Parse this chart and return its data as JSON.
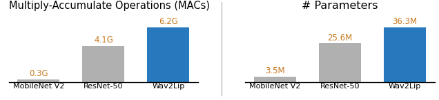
{
  "chart1_title": "Multiply-Accumulate Operations (MACs)",
  "chart1_categories": [
    "MobileNet V2",
    "ResNet-50",
    "Wav2Lip"
  ],
  "chart1_values": [
    0.3,
    4.1,
    6.2
  ],
  "chart1_labels": [
    "0.3G",
    "4.1G",
    "6.2G"
  ],
  "chart1_colors": [
    "#b0b0b0",
    "#b0b0b0",
    "#2878be"
  ],
  "chart2_title": "# Parameters",
  "chart2_categories": [
    "MobileNet V2",
    "ResNet-50",
    "Wav2Lip"
  ],
  "chart2_values": [
    3.5,
    25.6,
    36.3
  ],
  "chart2_labels": [
    "3.5M",
    "25.6M",
    "36.3M"
  ],
  "chart2_colors": [
    "#b0b0b0",
    "#b0b0b0",
    "#2878be"
  ],
  "bar_width": 0.65,
  "label_fontsize": 8.5,
  "title1_fontsize": 10.5,
  "title2_fontsize": 11.5,
  "tick_fontsize": 8.0,
  "label_color": "#c87820",
  "divider_color": "#aaaaaa"
}
